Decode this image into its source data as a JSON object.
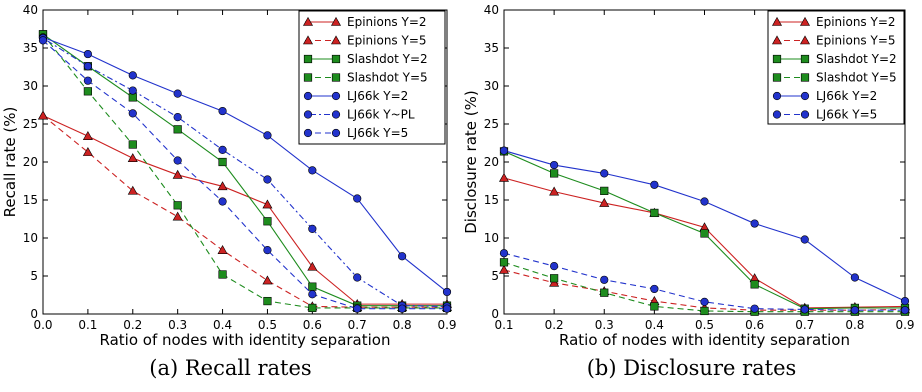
{
  "chart_data": [
    {
      "type": "line",
      "ylabel": "Recall rate (%)",
      "xlabel": "Ratio of nodes with identity separation",
      "xlim": [
        0,
        0.9
      ],
      "ylim": [
        0,
        40
      ],
      "xticks": [
        "0.0",
        "0.1",
        "0.2",
        "0.3",
        "0.4",
        "0.5",
        "0.6",
        "0.7",
        "0.8",
        "0.9"
      ],
      "yticks": [
        "0",
        "5",
        "10",
        "15",
        "20",
        "25",
        "30",
        "35",
        "40"
      ],
      "grid": false,
      "legend": "top-right",
      "caption": "(a) Recall rates",
      "series": [
        {
          "name": "Epinions Y=2",
          "color": "#cc2222",
          "marker": "triangle",
          "dash": "solid",
          "x": [
            0,
            0.1,
            0.2,
            0.3,
            0.4,
            0.5,
            0.6,
            0.7,
            0.8,
            0.9
          ],
          "y": [
            26.1,
            23.4,
            20.5,
            18.3,
            16.8,
            14.4,
            6.2,
            1.3,
            1.3,
            1.3
          ]
        },
        {
          "name": "Epinions Y=5",
          "color": "#cc2222",
          "marker": "triangle",
          "dash": "dashed",
          "x": [
            0,
            0.1,
            0.2,
            0.3,
            0.4,
            0.5,
            0.6,
            0.7,
            0.8,
            0.9
          ],
          "y": [
            26.1,
            21.3,
            16.2,
            12.8,
            8.4,
            4.4,
            1.0,
            0.9,
            0.9,
            0.9
          ]
        },
        {
          "name": "Slashdot Y=2",
          "color": "#1e8c1e",
          "marker": "square",
          "dash": "solid",
          "x": [
            0,
            0.1,
            0.2,
            0.3,
            0.4,
            0.5,
            0.6,
            0.7,
            0.8,
            0.9
          ],
          "y": [
            36.8,
            32.6,
            28.5,
            24.3,
            20.0,
            12.2,
            3.6,
            1.1,
            1.1,
            1.1
          ]
        },
        {
          "name": "Slashdot Y=5",
          "color": "#1e8c1e",
          "marker": "square",
          "dash": "dashed",
          "x": [
            0,
            0.1,
            0.2,
            0.3,
            0.4,
            0.5,
            0.6,
            0.7,
            0.8,
            0.9
          ],
          "y": [
            36.8,
            29.3,
            22.3,
            14.3,
            5.2,
            1.7,
            0.8,
            0.8,
            0.8,
            0.8
          ]
        },
        {
          "name": "LJ66k Y=2",
          "color": "#2233cc",
          "marker": "circle",
          "dash": "solid",
          "x": [
            0,
            0.1,
            0.2,
            0.3,
            0.4,
            0.5,
            0.6,
            0.7,
            0.8,
            0.9
          ],
          "y": [
            36.4,
            34.2,
            31.4,
            29.0,
            26.7,
            23.5,
            18.9,
            15.2,
            7.6,
            2.9
          ]
        },
        {
          "name": "LJ66k Y~PL",
          "color": "#2233cc",
          "marker": "circle",
          "dash": "dashdot",
          "x": [
            0,
            0.1,
            0.2,
            0.3,
            0.4,
            0.5,
            0.6,
            0.7,
            0.8,
            0.9
          ],
          "y": [
            36.3,
            32.6,
            29.4,
            25.9,
            21.6,
            17.7,
            11.2,
            4.8,
            1.1,
            1.0
          ]
        },
        {
          "name": "LJ66k Y=5",
          "color": "#2233cc",
          "marker": "circle",
          "dash": "dashed",
          "x": [
            0,
            0.1,
            0.2,
            0.3,
            0.4,
            0.5,
            0.6,
            0.7,
            0.8,
            0.9
          ],
          "y": [
            36.0,
            30.7,
            26.4,
            20.2,
            14.8,
            8.4,
            2.6,
            0.7,
            0.7,
            0.7
          ]
        }
      ]
    },
    {
      "type": "line",
      "ylabel": "Disclosure rate (%)",
      "xlabel": "Ratio of nodes with identity separation",
      "xlim": [
        0.1,
        0.9
      ],
      "ylim": [
        0,
        40
      ],
      "xticks": [
        "0.1",
        "0.2",
        "0.3",
        "0.4",
        "0.5",
        "0.6",
        "0.7",
        "0.8",
        "0.9"
      ],
      "yticks": [
        "0",
        "5",
        "10",
        "15",
        "20",
        "25",
        "30",
        "35",
        "40"
      ],
      "grid": false,
      "legend": "top-right",
      "caption": "(b) Disclosure rates",
      "series": [
        {
          "name": "Epinions Y=2",
          "color": "#cc2222",
          "marker": "triangle",
          "dash": "solid",
          "x": [
            0.1,
            0.2,
            0.3,
            0.4,
            0.5,
            0.6,
            0.7,
            0.8,
            0.9
          ],
          "y": [
            17.9,
            16.1,
            14.6,
            13.3,
            11.4,
            4.7,
            0.8,
            0.9,
            1.0
          ]
        },
        {
          "name": "Epinions Y=5",
          "color": "#cc2222",
          "marker": "triangle",
          "dash": "dashed",
          "x": [
            0.1,
            0.2,
            0.3,
            0.4,
            0.5,
            0.6,
            0.7,
            0.8,
            0.9
          ],
          "y": [
            5.8,
            4.1,
            3.0,
            1.7,
            0.8,
            0.5,
            0.5,
            0.5,
            0.6
          ]
        },
        {
          "name": "Slashdot Y=2",
          "color": "#1e8c1e",
          "marker": "square",
          "dash": "solid",
          "x": [
            0.1,
            0.2,
            0.3,
            0.4,
            0.5,
            0.6,
            0.7,
            0.8,
            0.9
          ],
          "y": [
            21.4,
            18.5,
            16.2,
            13.3,
            10.6,
            3.9,
            0.7,
            0.8,
            0.8
          ]
        },
        {
          "name": "Slashdot Y=5",
          "color": "#1e8c1e",
          "marker": "square",
          "dash": "dashed",
          "x": [
            0.1,
            0.2,
            0.3,
            0.4,
            0.5,
            0.6,
            0.7,
            0.8,
            0.9
          ],
          "y": [
            6.8,
            4.7,
            2.8,
            1.0,
            0.4,
            0.3,
            0.3,
            0.3,
            0.3
          ]
        },
        {
          "name": "LJ66k Y=2",
          "color": "#2233cc",
          "marker": "circle",
          "dash": "solid",
          "x": [
            0.1,
            0.2,
            0.3,
            0.4,
            0.5,
            0.6,
            0.7,
            0.8,
            0.9
          ],
          "y": [
            21.5,
            19.6,
            18.5,
            17.0,
            14.8,
            11.9,
            9.8,
            4.8,
            1.7
          ]
        },
        {
          "name": "LJ66k Y=5",
          "color": "#2233cc",
          "marker": "circle",
          "dash": "dashed",
          "x": [
            0.1,
            0.2,
            0.3,
            0.4,
            0.5,
            0.6,
            0.7,
            0.8,
            0.9
          ],
          "y": [
            8.0,
            6.3,
            4.5,
            3.3,
            1.6,
            0.7,
            0.6,
            0.5,
            0.5
          ]
        }
      ]
    }
  ]
}
